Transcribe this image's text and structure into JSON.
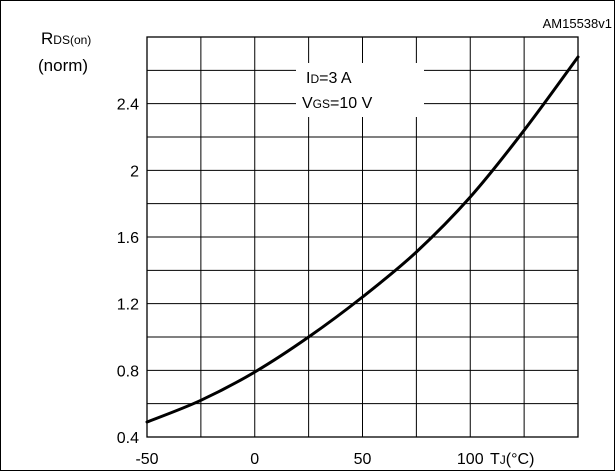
{
  "chart_data": {
    "type": "line",
    "reference_code": "AM15538v1",
    "y_label": {
      "main": "R",
      "subscript": "DS(on)",
      "unit": "(norm)"
    },
    "x_label": {
      "main": "T",
      "subscript": "J",
      "unit": "(°C)"
    },
    "annotation": [
      {
        "main": "I",
        "subscript": "D",
        "rest": "=3 A"
      },
      {
        "main": "V",
        "subscript": "GS",
        "rest": "=10 V"
      }
    ],
    "xlim": [
      -50,
      150
    ],
    "ylim": [
      0.4,
      2.8
    ],
    "x_ticks": [
      -50,
      0,
      50,
      100
    ],
    "x_tick_labels": [
      "-50",
      "0",
      "50",
      "100"
    ],
    "y_ticks": [
      0.4,
      0.8,
      1.2,
      1.6,
      2,
      2.4
    ],
    "y_tick_labels": [
      "0.4",
      "0.8",
      "1.2",
      "1.6",
      "2",
      "2.4"
    ],
    "grid": true,
    "series": [
      {
        "x": [
          -50,
          -25,
          0,
          25,
          50,
          75,
          100,
          125,
          150
        ],
        "y": [
          0.49,
          0.62,
          0.79,
          1.0,
          1.24,
          1.51,
          1.84,
          2.24,
          2.68
        ]
      }
    ]
  }
}
